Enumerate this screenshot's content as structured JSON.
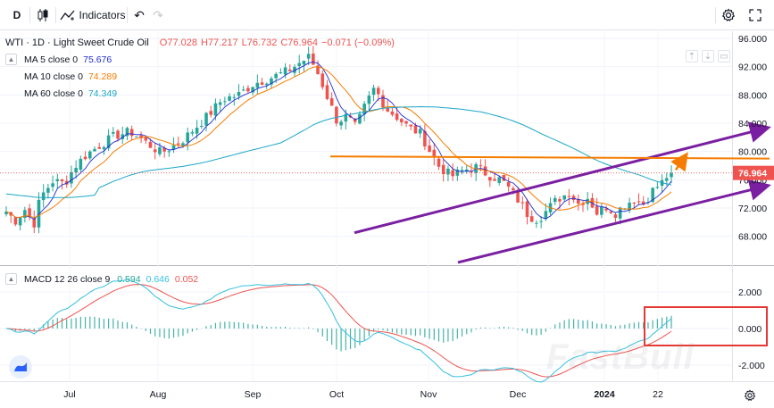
{
  "toolbar": {
    "interval": "D",
    "indicators_label": "Indicators"
  },
  "symbol": {
    "title": "WTI · 1D · Light Sweet Crude Oil",
    "open": "O77.028",
    "high": "H77.217",
    "low": "L76.732",
    "close": "C76.964",
    "change": "−0.071 (−0.09%)"
  },
  "ma": [
    {
      "label": "MA 5 close 0",
      "value": "75.676",
      "color": "#1f2ad1"
    },
    {
      "label": "MA 10 close 0",
      "value": "74.289",
      "color": "#f57c00"
    },
    {
      "label": "MA 60 close 0",
      "value": "74.349",
      "color": "#1aa6c7"
    }
  ],
  "macd": {
    "label": "MACD 12 26 close 9",
    "values": [
      {
        "value": "0.594",
        "color": "#26a69a"
      },
      {
        "value": "0.646",
        "color": "#35c0e0"
      },
      {
        "value": "0.052",
        "color": "#ef5350"
      }
    ]
  },
  "price_axis": [
    "96.000",
    "92.000",
    "88.000",
    "84.000",
    "80.000",
    "76.000",
    "72.000",
    "68.000"
  ],
  "current_price": "76.964",
  "macd_axis": [
    "2.000",
    "0.000",
    "-2.000"
  ],
  "time_axis": [
    "Jul",
    "Aug",
    "Sep",
    "Oct",
    "Nov",
    "Dec",
    "2024",
    "22"
  ],
  "watermark": "FastBull",
  "colors": {
    "up": "#26a69a",
    "down": "#ef5350",
    "channel": "#7b1fa2",
    "resistance": "#f57c00",
    "highlight_box": "#e53935"
  }
}
